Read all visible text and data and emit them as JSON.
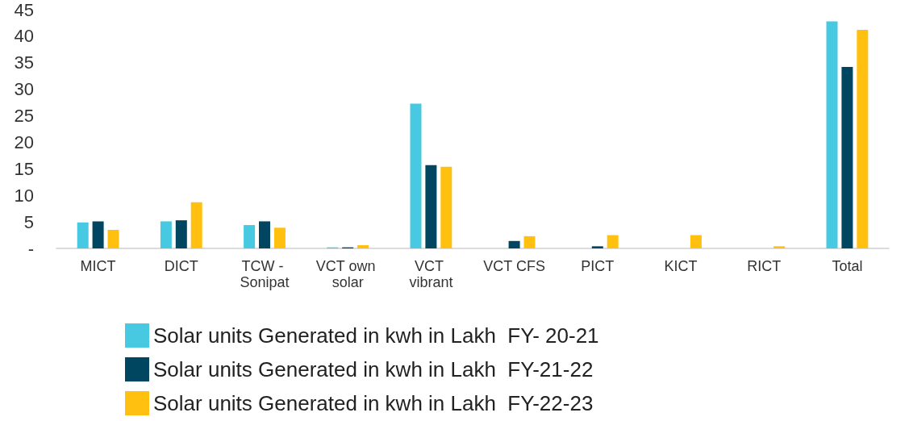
{
  "chart_data": {
    "type": "bar",
    "categories": [
      "MICT",
      "DICT",
      "TCW - Sonipat",
      "VCT own solar",
      "VCT vibrant",
      "VCT CFS",
      "PICT",
      "KICT",
      "RICT",
      "Total"
    ],
    "series": [
      {
        "name": "Solar units Generated in kwh in Lakh  FY- 20-21",
        "color": "#48c9e2",
        "values": [
          4.9,
          5.1,
          4.4,
          0.2,
          27.3,
          null,
          null,
          null,
          null,
          42.8
        ]
      },
      {
        "name": "Solar units Generated in kwh in Lakh  FY-21-22",
        "color": "#004660",
        "values": [
          5.1,
          5.3,
          5.1,
          0.2,
          15.7,
          1.4,
          0.4,
          null,
          null,
          34.2
        ]
      },
      {
        "name": "Solar units Generated in kwh in Lakh  FY-22-23",
        "color": "#ffc010",
        "values": [
          3.5,
          8.7,
          3.9,
          0.6,
          15.4,
          2.3,
          2.5,
          2.5,
          0.4,
          41.2
        ]
      }
    ],
    "ylim": [
      0,
      45
    ],
    "yticks": [
      {
        "value": 0,
        "label": "-"
      },
      5,
      10,
      15,
      20,
      25,
      30,
      35,
      40,
      45
    ],
    "grid": false,
    "legend": "bottom"
  }
}
